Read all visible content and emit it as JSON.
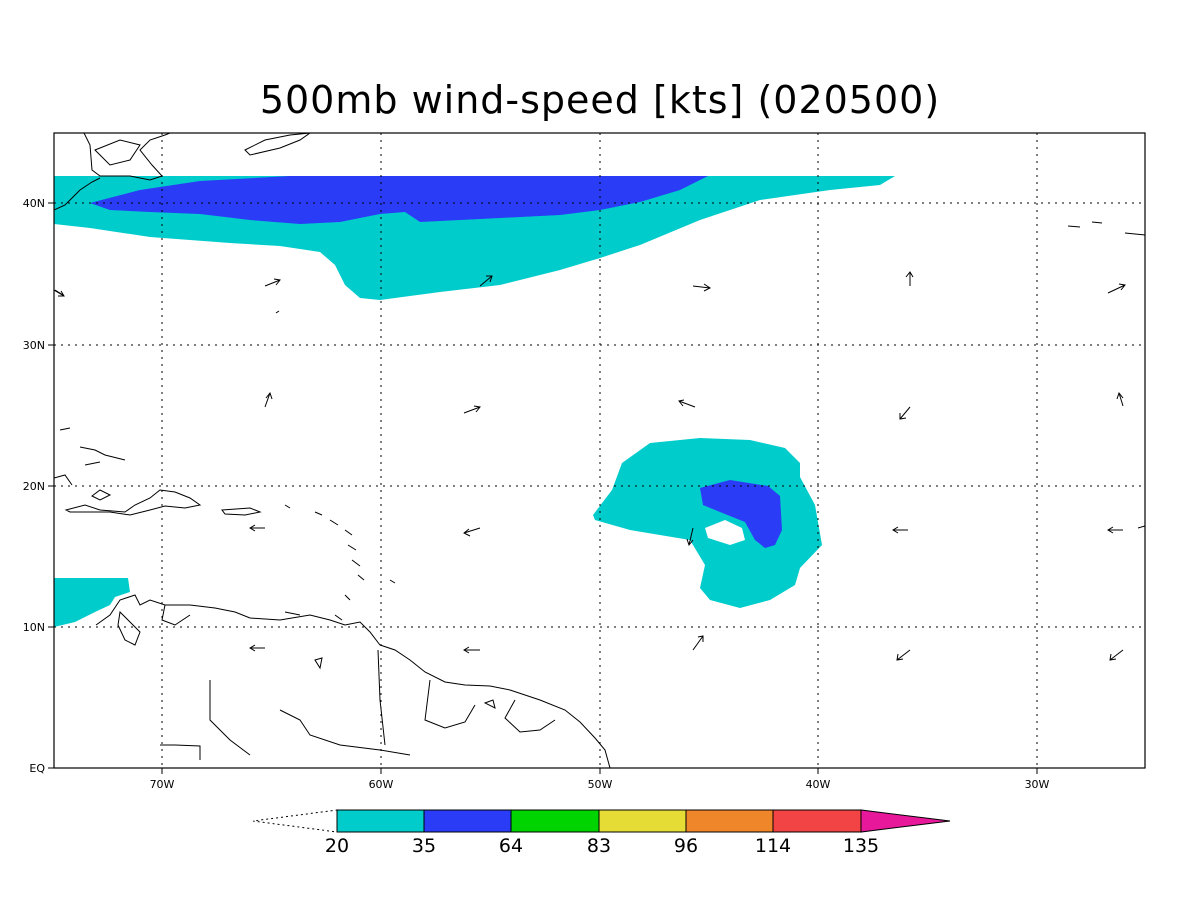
{
  "title": "500mb wind-speed [kts] (020500)",
  "lat_labels": [
    "EQ",
    "10N",
    "20N",
    "30N",
    "40N"
  ],
  "lon_labels": [
    "70W",
    "60W",
    "50W",
    "40W",
    "30W"
  ],
  "colorbar": {
    "ticks": [
      "20",
      "35",
      "64",
      "83",
      "96",
      "114",
      "135"
    ],
    "colors": [
      "#00cccc",
      "#2a3cf5",
      "#00d400",
      "#e5dc36",
      "#f0862a",
      "#f24444",
      "#e8189a"
    ]
  },
  "colors": {
    "frame": "#000000",
    "coast": "#000000",
    "grid": "#000000"
  }
}
